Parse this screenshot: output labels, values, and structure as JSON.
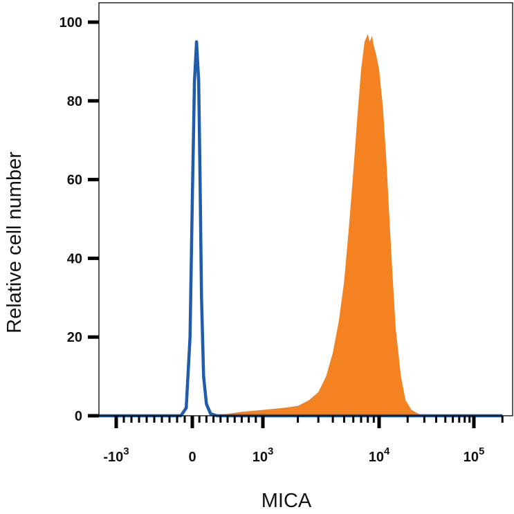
{
  "chart_data": {
    "type": "area",
    "xlabel": "MICA",
    "ylabel": "Relative cell number",
    "ylim": [
      0,
      100
    ],
    "x_scale": "biexponential",
    "xlim": [
      -2000,
      200000
    ],
    "y_ticks": [
      {
        "value": 0,
        "label": "0"
      },
      {
        "value": 20,
        "label": "20"
      },
      {
        "value": 40,
        "label": "40"
      },
      {
        "value": 60,
        "label": "60"
      },
      {
        "value": 80,
        "label": "80"
      },
      {
        "value": 100,
        "label": "100"
      }
    ],
    "x_ticks": [
      {
        "value": -1000,
        "base": "-10",
        "exp": "3"
      },
      {
        "value": 0,
        "base": "0",
        "exp": ""
      },
      {
        "value": 1000,
        "base": "10",
        "exp": "3"
      },
      {
        "value": 10000,
        "base": "10",
        "exp": "4"
      },
      {
        "value": 100000,
        "base": "10",
        "exp": "5"
      }
    ],
    "grid": false,
    "legend": "none",
    "series": [
      {
        "style": "filled",
        "color": "#f58220",
        "x": [
          -2000,
          200,
          500,
          700,
          1000,
          1500,
          2000,
          2500,
          3000,
          3500,
          4000,
          4500,
          5000,
          5500,
          6000,
          6500,
          7000,
          7500,
          8000,
          8300,
          8700,
          9000,
          9400,
          10000,
          11000,
          12000,
          13000,
          14000,
          15000,
          17000,
          19000,
          22000,
          26000,
          30000,
          35000,
          200000
        ],
        "y": [
          0,
          0,
          0.5,
          1,
          1.5,
          2,
          2.5,
          4,
          6,
          10,
          16,
          24,
          34,
          48,
          62,
          76,
          88,
          95,
          97,
          95,
          96.5,
          94,
          92,
          88,
          78,
          64,
          48,
          34,
          22,
          10,
          4,
          1.5,
          0.5,
          0,
          0,
          0
        ]
      },
      {
        "style": "line",
        "color": "#1f5ca9",
        "x": [
          -2000,
          -150,
          -80,
          -30,
          0,
          30,
          60,
          90,
          110,
          130,
          160,
          200,
          260,
          350,
          200000
        ],
        "y": [
          0,
          0,
          2,
          20,
          55,
          85,
          95,
          85,
          60,
          30,
          10,
          3,
          0.5,
          0,
          0
        ]
      }
    ]
  }
}
